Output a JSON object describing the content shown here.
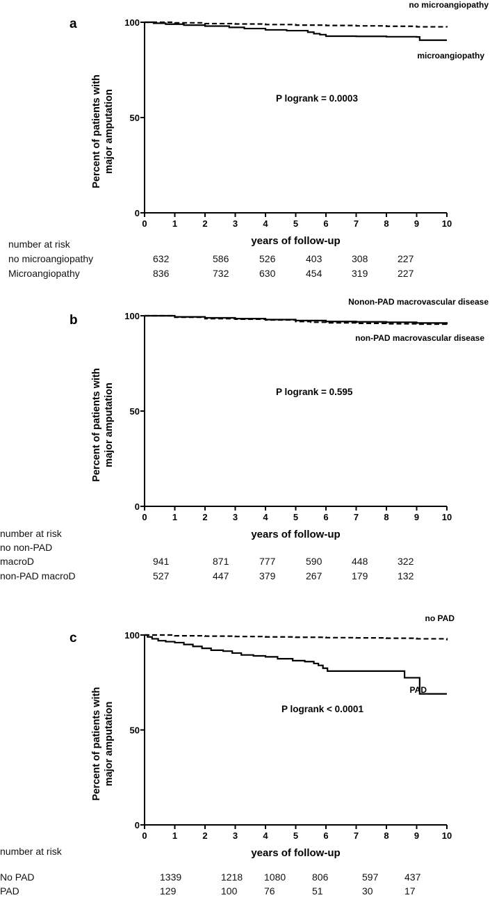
{
  "chart_data": [
    {
      "type": "line",
      "panel_label": "a",
      "xlabel": "years of follow-up",
      "ylabel": [
        "Percent of patients with",
        "major amputation"
      ],
      "xlim": [
        0,
        10
      ],
      "ylim": [
        0,
        100
      ],
      "x_ticks": [
        "0",
        "1",
        "2",
        "3",
        "4",
        "5",
        "6",
        "7",
        "8",
        "9",
        "10"
      ],
      "y_ticks": [
        "0",
        "50",
        "100"
      ],
      "annotation": "P logrank = 0.0003",
      "series": [
        {
          "name": "no microangiopathy",
          "style": "dashed",
          "step": true,
          "points": [
            [
              0,
              100
            ],
            [
              1,
              99.7
            ],
            [
              2,
              99.3
            ],
            [
              3,
              99.1
            ],
            [
              4,
              98.8
            ],
            [
              5,
              98.5
            ],
            [
              6,
              98.3
            ],
            [
              7,
              98.1
            ],
            [
              8,
              97.9
            ],
            [
              9,
              97.6
            ],
            [
              10,
              97.3
            ]
          ]
        },
        {
          "name": "microangiopathy",
          "style": "solid",
          "step": true,
          "points": [
            [
              0,
              100
            ],
            [
              0.3,
              99.5
            ],
            [
              0.7,
              99.0
            ],
            [
              1.3,
              98.5
            ],
            [
              2.0,
              98.0
            ],
            [
              2.8,
              97.3
            ],
            [
              3.3,
              96.7
            ],
            [
              4.0,
              96.0
            ],
            [
              4.7,
              95.6
            ],
            [
              5.4,
              94.8
            ],
            [
              5.6,
              94.0
            ],
            [
              5.8,
              93.5
            ],
            [
              6.0,
              92.7
            ],
            [
              7.0,
              92.6
            ],
            [
              8.0,
              92.4
            ],
            [
              9.0,
              92.3
            ],
            [
              9.1,
              90.6
            ],
            [
              10,
              90.6
            ]
          ]
        }
      ],
      "risk_table": {
        "title": "number at risk",
        "rows": [
          {
            "label": [
              "no microangiopathy"
            ],
            "values": [
              "632",
              "586",
              "526",
              "403",
              "308",
              "227"
            ]
          },
          {
            "label": [
              "Microangiopathy"
            ],
            "values": [
              "836",
              "732",
              "630",
              "454",
              "319",
              "227"
            ]
          }
        ]
      }
    },
    {
      "type": "line",
      "panel_label": "b",
      "xlabel": "years of follow-up",
      "ylabel": [
        "Percent of patients with",
        "major amputation"
      ],
      "xlim": [
        0,
        10
      ],
      "ylim": [
        0,
        100
      ],
      "x_ticks": [
        "0",
        "1",
        "2",
        "3",
        "4",
        "5",
        "6",
        "7",
        "8",
        "9",
        "10"
      ],
      "y_ticks": [
        "0",
        "50",
        "100"
      ],
      "annotation": "P logrank = 0.595",
      "series": [
        {
          "name": "Nonon-PAD macrovascular disease",
          "style": "solid",
          "step": true,
          "points": [
            [
              0,
              100
            ],
            [
              1,
              99.4
            ],
            [
              2,
              98.9
            ],
            [
              3,
              98.5
            ],
            [
              4,
              98.0
            ],
            [
              5,
              97.5
            ],
            [
              6,
              97.0
            ],
            [
              7,
              96.8
            ],
            [
              8,
              96.6
            ],
            [
              9,
              96.2
            ],
            [
              10,
              95.5
            ]
          ]
        },
        {
          "name": "non-PAD macrovascular disease",
          "style": "dashed",
          "step": true,
          "points": [
            [
              0,
              100
            ],
            [
              1,
              99.2
            ],
            [
              2,
              98.5
            ],
            [
              3,
              98.2
            ],
            [
              4,
              97.8
            ],
            [
              5,
              97.0
            ],
            [
              5.5,
              96.6
            ],
            [
              6,
              96.3
            ],
            [
              7,
              96.0
            ],
            [
              8,
              95.8
            ],
            [
              9,
              95.6
            ],
            [
              10,
              95.5
            ]
          ]
        }
      ],
      "risk_table": {
        "title": "number at risk",
        "rows": [
          {
            "label": [
              "no non-PAD",
              "macroD"
            ],
            "values": [
              "941",
              "871",
              "777",
              "590",
              "448",
              "322"
            ]
          },
          {
            "label": [
              "non-PAD macroD"
            ],
            "values": [
              "527",
              "447",
              "379",
              "267",
              "179",
              "132"
            ]
          }
        ]
      }
    },
    {
      "type": "line",
      "panel_label": "c",
      "xlabel": "years of follow-up",
      "ylabel": [
        "Percent of patients with",
        "major amputation"
      ],
      "xlim": [
        0,
        10
      ],
      "ylim": [
        0,
        100
      ],
      "x_ticks": [
        "0",
        "1",
        "2",
        "3",
        "4",
        "5",
        "6",
        "7",
        "8",
        "9",
        "10"
      ],
      "y_ticks": [
        "0",
        "50",
        "100"
      ],
      "annotation": "P logrank < 0.0001",
      "series": [
        {
          "name": "no PAD",
          "style": "dashed",
          "step": true,
          "points": [
            [
              0,
              100
            ],
            [
              1,
              99.6
            ],
            [
              2,
              99.4
            ],
            [
              3,
              99.2
            ],
            [
              4,
              99.0
            ],
            [
              5,
              98.8
            ],
            [
              6,
              98.6
            ],
            [
              7,
              98.5
            ],
            [
              8,
              98.3
            ],
            [
              9,
              98.0
            ],
            [
              10,
              97.2
            ]
          ]
        },
        {
          "name": "PAD",
          "style": "solid",
          "step": true,
          "points": [
            [
              0,
              100
            ],
            [
              0.1,
              99.0
            ],
            [
              0.25,
              98.0
            ],
            [
              0.45,
              97.0
            ],
            [
              0.7,
              96.5
            ],
            [
              1.0,
              96.0
            ],
            [
              1.3,
              95.0
            ],
            [
              1.6,
              94.0
            ],
            [
              1.9,
              93.0
            ],
            [
              2.2,
              92.0
            ],
            [
              2.6,
              91.5
            ],
            [
              2.9,
              90.5
            ],
            [
              3.2,
              89.5
            ],
            [
              3.6,
              89.0
            ],
            [
              4.0,
              88.5
            ],
            [
              4.4,
              87.5
            ],
            [
              4.9,
              86.5
            ],
            [
              5.3,
              86.0
            ],
            [
              5.6,
              85.0
            ],
            [
              5.75,
              84.0
            ],
            [
              5.9,
              82.5
            ],
            [
              6.05,
              81.0
            ],
            [
              7.0,
              81.0
            ],
            [
              8.0,
              81.0
            ],
            [
              8.6,
              81.0
            ],
            [
              8.6,
              77.5
            ],
            [
              9.1,
              77.5
            ],
            [
              9.1,
              69.0
            ],
            [
              10,
              69.0
            ]
          ]
        }
      ],
      "risk_table": {
        "title": "number at risk",
        "rows": [
          {
            "label": [
              "No PAD"
            ],
            "values": [
              "1339",
              "1218",
              "1080",
              "806",
              "597",
              "437"
            ]
          },
          {
            "label": [
              "PAD"
            ],
            "values": [
              "129",
              "100",
              "76",
              "51",
              "30",
              "17"
            ]
          }
        ]
      }
    }
  ]
}
